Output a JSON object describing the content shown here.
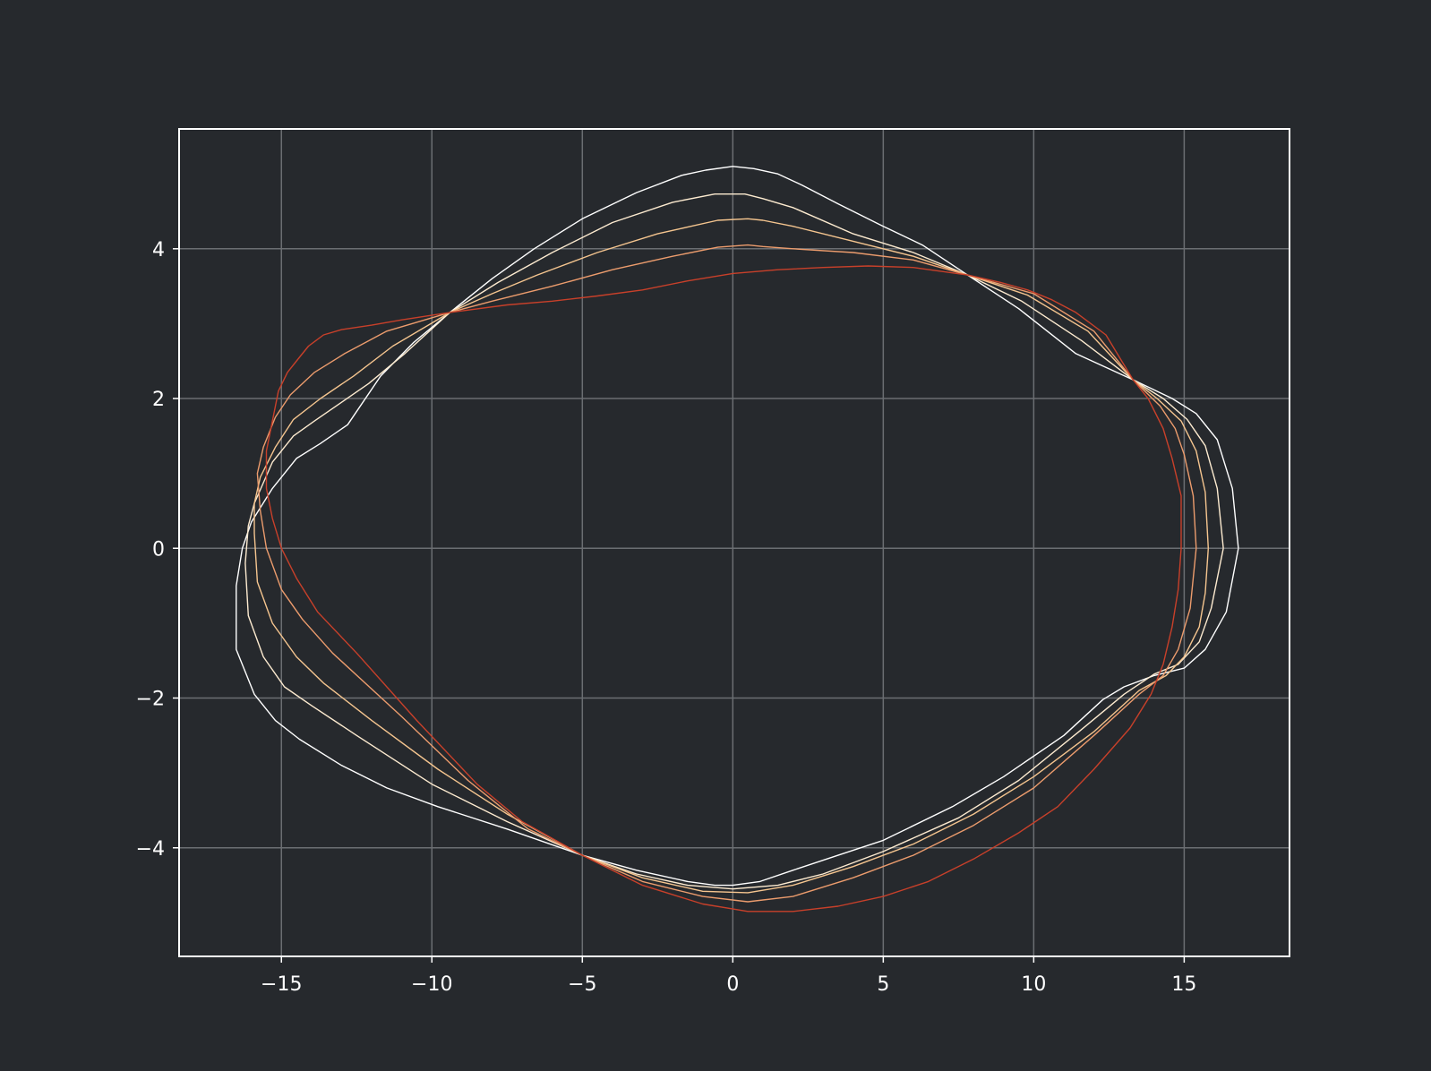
{
  "chart_data": {
    "type": "line",
    "title": "",
    "xlabel": "",
    "ylabel": "",
    "xlim": [
      -18.4,
      18.5
    ],
    "ylim": [
      -5.45,
      5.6
    ],
    "grid": true,
    "x_ticks": [
      -15,
      -10,
      -5,
      0,
      5,
      10,
      15
    ],
    "y_ticks": [
      -4,
      -2,
      0,
      2,
      4
    ],
    "x_tick_labels": [
      "−15",
      "−10",
      "−5",
      "0",
      "5",
      "10",
      "15"
    ],
    "y_tick_labels": [
      "−4",
      "−2",
      "0",
      "2",
      "4"
    ],
    "colors": {
      "background": "#26292d",
      "axes_frame": "#ffffff",
      "grid": "#6b6e72",
      "tick_text": "#ffffff"
    },
    "series": [
      {
        "color": "#ffffff",
        "points": [
          [
            16.8,
            0
          ],
          [
            16.6,
            0.8
          ],
          [
            16.1,
            1.45
          ],
          [
            15.4,
            1.8
          ],
          [
            14.6,
            2.0
          ],
          [
            13.3,
            2.25
          ],
          [
            11.4,
            2.6
          ],
          [
            9.5,
            3.2
          ],
          [
            7.8,
            3.65
          ],
          [
            6.3,
            4.05
          ],
          [
            5.0,
            4.3
          ],
          [
            3.5,
            4.6
          ],
          [
            2.3,
            4.85
          ],
          [
            1.5,
            5.0
          ],
          [
            0.7,
            5.07
          ],
          [
            0,
            5.1
          ],
          [
            -0.9,
            5.05
          ],
          [
            -1.7,
            4.98
          ],
          [
            -3.2,
            4.75
          ],
          [
            -5.0,
            4.4
          ],
          [
            -6.6,
            4.0
          ],
          [
            -8.0,
            3.6
          ],
          [
            -9.4,
            3.15
          ],
          [
            -10.6,
            2.75
          ],
          [
            -11.7,
            2.3
          ],
          [
            -12.8,
            1.65
          ],
          [
            -13.7,
            1.4
          ],
          [
            -14.5,
            1.2
          ],
          [
            -15.3,
            0.8
          ],
          [
            -16.0,
            0.35
          ],
          [
            -16.3,
            0.0
          ],
          [
            -16.5,
            -0.5
          ],
          [
            -16.5,
            -1.35
          ],
          [
            -15.9,
            -1.95
          ],
          [
            -15.2,
            -2.3
          ],
          [
            -14.4,
            -2.55
          ],
          [
            -13.0,
            -2.9
          ],
          [
            -11.5,
            -3.2
          ],
          [
            -9.8,
            -3.45
          ],
          [
            -7.5,
            -3.75
          ],
          [
            -5.0,
            -4.1
          ],
          [
            -3.2,
            -4.3
          ],
          [
            -1.5,
            -4.45
          ],
          [
            -0.6,
            -4.5
          ],
          [
            0,
            -4.5
          ],
          [
            0.9,
            -4.45
          ],
          [
            2.0,
            -4.3
          ],
          [
            3.5,
            -4.1
          ],
          [
            5.0,
            -3.9
          ],
          [
            7.3,
            -3.45
          ],
          [
            9.0,
            -3.05
          ],
          [
            11.0,
            -2.5
          ],
          [
            12.3,
            -2.02
          ],
          [
            13.0,
            -1.85
          ],
          [
            14.0,
            -1.7
          ],
          [
            15.0,
            -1.6
          ],
          [
            15.7,
            -1.35
          ],
          [
            16.4,
            -0.85
          ],
          [
            16.8,
            0
          ]
        ]
      },
      {
        "color": "#fdebd0",
        "points": [
          [
            16.3,
            0
          ],
          [
            16.1,
            0.8
          ],
          [
            15.7,
            1.37
          ],
          [
            15.1,
            1.72
          ],
          [
            14.3,
            2.0
          ],
          [
            13.3,
            2.25
          ],
          [
            11.6,
            2.77
          ],
          [
            9.6,
            3.3
          ],
          [
            7.8,
            3.65
          ],
          [
            6.0,
            3.95
          ],
          [
            4.0,
            4.2
          ],
          [
            2.0,
            4.55
          ],
          [
            1.0,
            4.67
          ],
          [
            0.4,
            4.73
          ],
          [
            -0.6,
            4.73
          ],
          [
            -2.0,
            4.62
          ],
          [
            -4.0,
            4.35
          ],
          [
            -6.0,
            3.95
          ],
          [
            -7.8,
            3.55
          ],
          [
            -9.4,
            3.15
          ],
          [
            -10.9,
            2.6
          ],
          [
            -12.1,
            2.2
          ],
          [
            -13.0,
            1.95
          ],
          [
            -13.9,
            1.7
          ],
          [
            -14.6,
            1.5
          ],
          [
            -15.3,
            1.15
          ],
          [
            -15.9,
            0.6
          ],
          [
            -16.1,
            0.3
          ],
          [
            -16.2,
            -0.2
          ],
          [
            -16.1,
            -0.9
          ],
          [
            -15.6,
            -1.45
          ],
          [
            -14.9,
            -1.85
          ],
          [
            -14.0,
            -2.1
          ],
          [
            -12.5,
            -2.5
          ],
          [
            -10.0,
            -3.15
          ],
          [
            -7.5,
            -3.65
          ],
          [
            -5.0,
            -4.1
          ],
          [
            -3.2,
            -4.35
          ],
          [
            -1.5,
            -4.5
          ],
          [
            0,
            -4.55
          ],
          [
            1.5,
            -4.5
          ],
          [
            3.0,
            -4.35
          ],
          [
            5.0,
            -4.05
          ],
          [
            7.5,
            -3.6
          ],
          [
            9.5,
            -3.1
          ],
          [
            11.5,
            -2.45
          ],
          [
            13.0,
            -1.95
          ],
          [
            14.0,
            -1.68
          ],
          [
            14.8,
            -1.55
          ],
          [
            15.5,
            -1.25
          ],
          [
            15.9,
            -0.8
          ],
          [
            16.3,
            0
          ]
        ]
      },
      {
        "color": "#f5c58f",
        "points": [
          [
            15.8,
            0
          ],
          [
            15.7,
            0.75
          ],
          [
            15.4,
            1.3
          ],
          [
            14.9,
            1.7
          ],
          [
            14.1,
            2.0
          ],
          [
            13.3,
            2.25
          ],
          [
            11.8,
            2.9
          ],
          [
            9.8,
            3.38
          ],
          [
            7.8,
            3.65
          ],
          [
            6.0,
            3.9
          ],
          [
            4.0,
            4.1
          ],
          [
            2.0,
            4.3
          ],
          [
            1.0,
            4.38
          ],
          [
            0.5,
            4.4
          ],
          [
            -0.5,
            4.38
          ],
          [
            -2.5,
            4.2
          ],
          [
            -4.5,
            3.95
          ],
          [
            -6.5,
            3.65
          ],
          [
            -8.0,
            3.4
          ],
          [
            -9.4,
            3.15
          ],
          [
            -11.3,
            2.7
          ],
          [
            -12.6,
            2.3
          ],
          [
            -13.7,
            2.0
          ],
          [
            -14.6,
            1.72
          ],
          [
            -15.2,
            1.35
          ],
          [
            -15.7,
            0.95
          ],
          [
            -15.9,
            0.6
          ],
          [
            -15.9,
            0.2
          ],
          [
            -15.8,
            -0.45
          ],
          [
            -15.3,
            -1.0
          ],
          [
            -14.5,
            -1.45
          ],
          [
            -13.6,
            -1.8
          ],
          [
            -12.0,
            -2.3
          ],
          [
            -9.8,
            -2.95
          ],
          [
            -7.5,
            -3.55
          ],
          [
            -5.0,
            -4.1
          ],
          [
            -3.0,
            -4.4
          ],
          [
            -1.0,
            -4.58
          ],
          [
            0.5,
            -4.6
          ],
          [
            2.0,
            -4.5
          ],
          [
            4.0,
            -4.25
          ],
          [
            6.0,
            -3.95
          ],
          [
            8.0,
            -3.55
          ],
          [
            10.0,
            -3.05
          ],
          [
            12.0,
            -2.45
          ],
          [
            13.5,
            -1.9
          ],
          [
            14.4,
            -1.7
          ],
          [
            15.0,
            -1.45
          ],
          [
            15.5,
            -1.05
          ],
          [
            15.7,
            -0.6
          ],
          [
            15.8,
            0
          ]
        ]
      },
      {
        "color": "#ec9c6d",
        "points": [
          [
            15.4,
            0
          ],
          [
            15.3,
            0.7
          ],
          [
            15.0,
            1.25
          ],
          [
            14.7,
            1.6
          ],
          [
            14.2,
            1.9
          ],
          [
            13.3,
            2.25
          ],
          [
            12.0,
            2.9
          ],
          [
            10.0,
            3.4
          ],
          [
            7.8,
            3.65
          ],
          [
            6.0,
            3.85
          ],
          [
            4.0,
            3.95
          ],
          [
            2.0,
            4.0
          ],
          [
            1.0,
            4.03
          ],
          [
            0.5,
            4.05
          ],
          [
            -0.5,
            4.02
          ],
          [
            -2.0,
            3.9
          ],
          [
            -4.0,
            3.72
          ],
          [
            -6.0,
            3.5
          ],
          [
            -8.0,
            3.3
          ],
          [
            -9.4,
            3.15
          ],
          [
            -11.5,
            2.9
          ],
          [
            -12.9,
            2.6
          ],
          [
            -13.9,
            2.35
          ],
          [
            -14.7,
            2.05
          ],
          [
            -15.2,
            1.75
          ],
          [
            -15.6,
            1.35
          ],
          [
            -15.8,
            1.0
          ],
          [
            -15.7,
            0.5
          ],
          [
            -15.5,
            0.0
          ],
          [
            -15.0,
            -0.55
          ],
          [
            -14.3,
            -0.95
          ],
          [
            -13.3,
            -1.4
          ],
          [
            -11.0,
            -2.25
          ],
          [
            -8.8,
            -3.1
          ],
          [
            -6.8,
            -3.75
          ],
          [
            -5.0,
            -4.1
          ],
          [
            -3.0,
            -4.45
          ],
          [
            -1.0,
            -4.65
          ],
          [
            0.5,
            -4.72
          ],
          [
            2.0,
            -4.65
          ],
          [
            4.0,
            -4.4
          ],
          [
            6.0,
            -4.1
          ],
          [
            8.0,
            -3.7
          ],
          [
            10.0,
            -3.2
          ],
          [
            12.0,
            -2.5
          ],
          [
            13.5,
            -1.95
          ],
          [
            14.3,
            -1.7
          ],
          [
            14.8,
            -1.35
          ],
          [
            15.2,
            -0.8
          ],
          [
            15.4,
            0
          ]
        ]
      },
      {
        "color": "#c8402a",
        "points": [
          [
            14.9,
            0
          ],
          [
            14.9,
            0.7
          ],
          [
            14.6,
            1.2
          ],
          [
            14.3,
            1.6
          ],
          [
            13.8,
            2.0
          ],
          [
            13.3,
            2.25
          ],
          [
            12.4,
            2.85
          ],
          [
            11.4,
            3.15
          ],
          [
            10.6,
            3.32
          ],
          [
            9.8,
            3.45
          ],
          [
            8.9,
            3.55
          ],
          [
            7.8,
            3.65
          ],
          [
            6.0,
            3.75
          ],
          [
            4.5,
            3.77
          ],
          [
            3.0,
            3.75
          ],
          [
            1.5,
            3.72
          ],
          [
            0,
            3.67
          ],
          [
            -1.5,
            3.57
          ],
          [
            -3.0,
            3.45
          ],
          [
            -4.5,
            3.37
          ],
          [
            -6.0,
            3.3
          ],
          [
            -7.5,
            3.25
          ],
          [
            -9.4,
            3.15
          ],
          [
            -11.0,
            3.05
          ],
          [
            -12.0,
            2.98
          ],
          [
            -13.0,
            2.92
          ],
          [
            -13.6,
            2.85
          ],
          [
            -14.1,
            2.7
          ],
          [
            -14.4,
            2.55
          ],
          [
            -14.8,
            2.35
          ],
          [
            -15.1,
            2.1
          ],
          [
            -15.3,
            1.7
          ],
          [
            -15.5,
            1.3
          ],
          [
            -15.5,
            0.8
          ],
          [
            -15.3,
            0.4
          ],
          [
            -15.0,
            0.0
          ],
          [
            -14.5,
            -0.4
          ],
          [
            -13.8,
            -0.85
          ],
          [
            -12.5,
            -1.4
          ],
          [
            -10.5,
            -2.3
          ],
          [
            -8.5,
            -3.15
          ],
          [
            -7.0,
            -3.65
          ],
          [
            -5.0,
            -4.1
          ],
          [
            -3.0,
            -4.5
          ],
          [
            -1.0,
            -4.75
          ],
          [
            0.5,
            -4.85
          ],
          [
            2.0,
            -4.85
          ],
          [
            3.5,
            -4.78
          ],
          [
            5.0,
            -4.65
          ],
          [
            6.5,
            -4.45
          ],
          [
            8.0,
            -4.15
          ],
          [
            9.5,
            -3.8
          ],
          [
            10.8,
            -3.45
          ],
          [
            12.0,
            -2.95
          ],
          [
            13.2,
            -2.4
          ],
          [
            13.9,
            -1.95
          ],
          [
            14.3,
            -1.55
          ],
          [
            14.6,
            -1.05
          ],
          [
            14.8,
            -0.55
          ],
          [
            14.9,
            0
          ]
        ]
      }
    ]
  }
}
